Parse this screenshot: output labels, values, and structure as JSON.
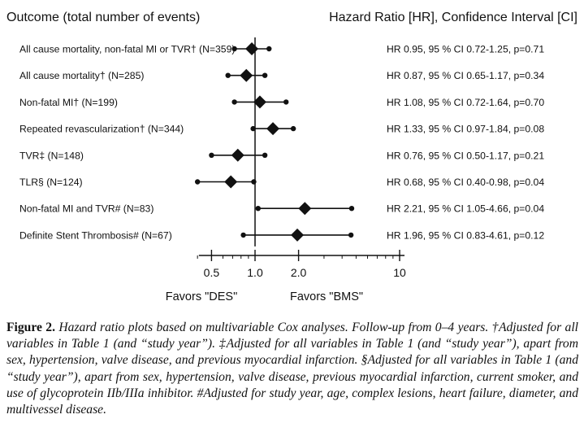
{
  "figure": {
    "header_left": "Outcome (total number of events)",
    "header_right": "Hazard Ratio [HR], Confidence Interval [CI]",
    "favors_left": "Favors \"DES\"",
    "favors_right": "Favors \"BMS\""
  },
  "chart_data": {
    "type": "forest",
    "x_scale": "log",
    "xlim": [
      0.35,
      10
    ],
    "xticks": [
      0.5,
      1.0,
      2.0,
      10
    ],
    "xtick_labels": [
      "0.5",
      "1.0",
      "2.0",
      "10"
    ],
    "reference_line": 1.0,
    "rows": [
      {
        "outcome": "All cause mortality, non-fatal MI or TVR† (N=359)",
        "hr": 0.95,
        "ci_low": 0.72,
        "ci_high": 1.25,
        "label": "HR 0.95, 95 % CI 0.72-1.25, p=0.71"
      },
      {
        "outcome": "All cause mortality† (N=285)",
        "hr": 0.87,
        "ci_low": 0.65,
        "ci_high": 1.17,
        "label": "HR 0.87, 95 % CI 0.65-1.17, p=0.34"
      },
      {
        "outcome": "Non-fatal MI† (N=199)",
        "hr": 1.08,
        "ci_low": 0.72,
        "ci_high": 1.64,
        "label": "HR 1.08, 95 % CI 0.72-1.64, p=0.70"
      },
      {
        "outcome": "Repeated revascularization† (N=344)",
        "hr": 1.33,
        "ci_low": 0.97,
        "ci_high": 1.84,
        "label": "HR 1.33, 95 % CI 0.97-1.84, p=0.08"
      },
      {
        "outcome": "TVR‡ (N=148)",
        "hr": 0.76,
        "ci_low": 0.5,
        "ci_high": 1.17,
        "label": "HR 0.76, 95 % CI 0.50-1.17, p=0.21"
      },
      {
        "outcome": "TLR§ (N=124)",
        "hr": 0.68,
        "ci_low": 0.4,
        "ci_high": 0.98,
        "label": "HR 0.68, 95 % CI 0.40-0.98, p=0.04"
      },
      {
        "outcome": "Non-fatal MI and TVR# (N=83)",
        "hr": 2.21,
        "ci_low": 1.05,
        "ci_high": 4.66,
        "label": "HR 2.21, 95 % CI 1.05-4.66, p=0.04"
      },
      {
        "outcome": "Definite Stent Thrombosis# (N=67)",
        "hr": 1.96,
        "ci_low": 0.83,
        "ci_high": 4.61,
        "label": "HR 1.96, 95 % CI 0.83-4.61, p=0.12"
      }
    ]
  },
  "caption": {
    "label": "Figure 2.",
    "text": "Hazard ratio plots based on multivariable Cox analyses. Follow-up from 0–4 years. †Adjusted for all variables in Table 1 (and “study year”). ‡Adjusted for all variables in Table 1 (and “study year”), apart from sex, hypertension, valve disease, and previous myocardial infarction. §Ad­justed for all variables in Table 1 (and “study year”), apart from sex, hypertension, valve disease, previous myocardial infarction, current smoker, and use of glycoprotein IIb/IIIa inhibitor. #Adjusted for study year, age, complex lesions, heart failure, diameter, and multivessel disease."
  }
}
